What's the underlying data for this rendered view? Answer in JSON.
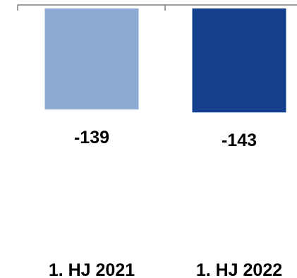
{
  "chart_data": {
    "type": "bar",
    "categories": [
      "1. HJ 2021",
      "1. HJ 2022"
    ],
    "values": [
      -139,
      -143
    ],
    "value_labels": [
      "-139",
      "-143"
    ],
    "ylim": [
      -160,
      0
    ],
    "grid": false,
    "colors": [
      "#8eabd4",
      "#133f8c"
    ],
    "axis_color": "#7f7f7f"
  }
}
